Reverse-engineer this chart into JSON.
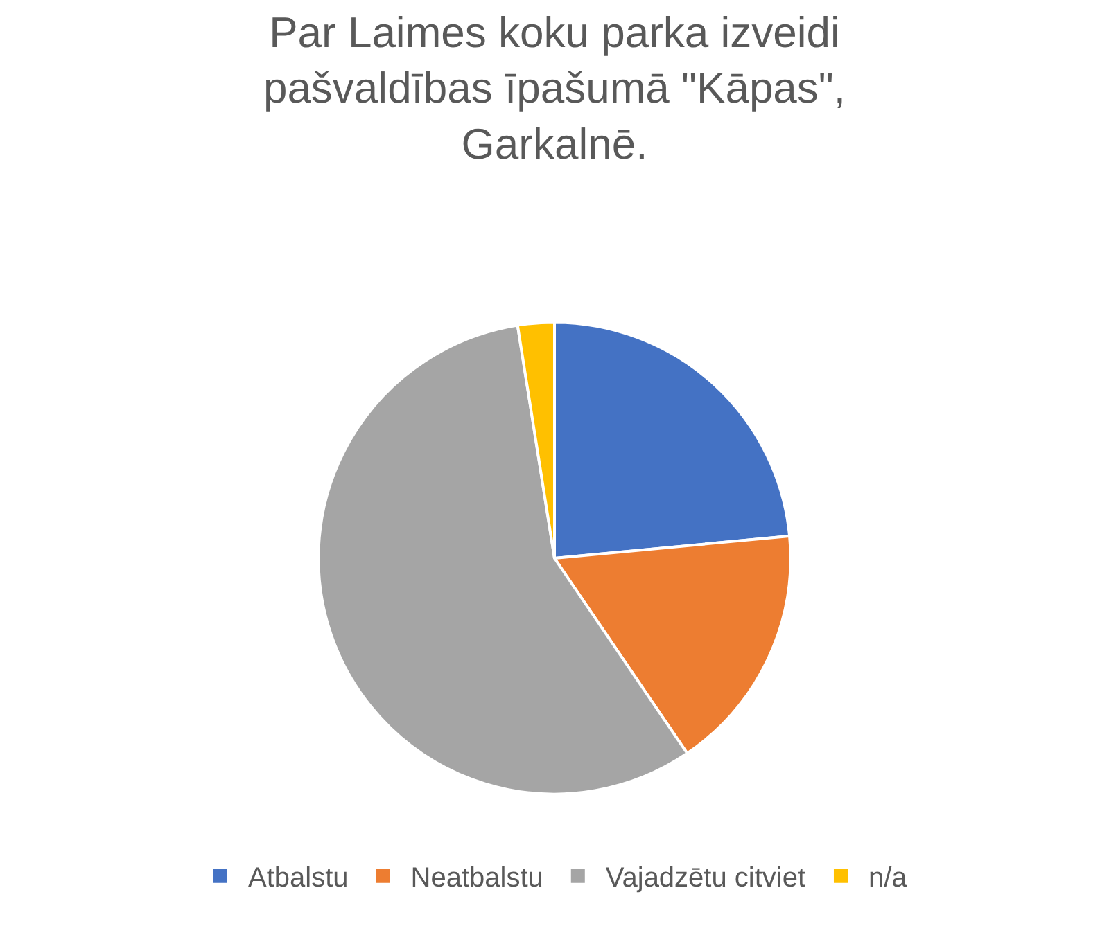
{
  "chart_data": {
    "type": "pie",
    "title": "Par Laimes koku parka izveidi pašvaldības īpašumā \"Kāpas\", Garkalnē.",
    "categories": [
      "Atbalstu",
      "Neatbalstu",
      "Vajadzētu citviet",
      "n/a"
    ],
    "values": [
      23.5,
      17,
      57,
      2.5
    ],
    "colors": [
      "#4472c4",
      "#ed7d31",
      "#a5a5a5",
      "#ffc000"
    ],
    "legend": "bottom"
  }
}
